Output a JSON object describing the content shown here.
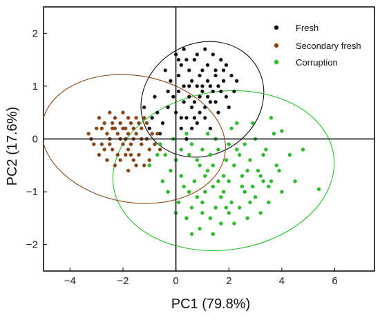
{
  "chart_data": {
    "type": "scatter",
    "xlabel": "PC1 (79.8%)",
    "ylabel": "PC2 (17.6%)",
    "xlim": [
      -5,
      7.5
    ],
    "ylim": [
      -2.5,
      2.5
    ],
    "xticks": [
      -4,
      -2,
      0,
      2,
      4,
      6
    ],
    "yticks": [
      -2,
      -1,
      0,
      1,
      2
    ],
    "xtick_labels": [
      "−4",
      "−2",
      "0",
      "2",
      "4",
      "6"
    ],
    "ytick_labels": [
      "−2",
      "−1",
      "0",
      "1",
      "2"
    ],
    "legend_position": "top-right",
    "grid": false,
    "series": [
      {
        "name": "Fresh",
        "color": "#111111",
        "ellipse": {
          "cx": 1.0,
          "cy": 0.75,
          "rx": 2.4,
          "ry": 1.05,
          "angle_deg": 32
        },
        "points": [
          [
            0.9,
            1.2
          ],
          [
            1.3,
            1.0
          ],
          [
            0.5,
            0.8
          ],
          [
            1.8,
            1.1
          ],
          [
            0.2,
            1.4
          ],
          [
            1.1,
            0.6
          ],
          [
            0.7,
            1.5
          ],
          [
            1.5,
            1.3
          ],
          [
            0.4,
            0.4
          ],
          [
            1.9,
            0.8
          ],
          [
            0.1,
            0.9
          ],
          [
            1.2,
            1.4
          ],
          [
            0.8,
            0.3
          ],
          [
            1.6,
            0.5
          ],
          [
            -0.3,
            0.6
          ],
          [
            0.6,
            1.1
          ],
          [
            1.4,
            0.9
          ],
          [
            2.1,
            1.2
          ],
          [
            0.3,
            1.7
          ],
          [
            1.0,
            0.9
          ],
          [
            -0.5,
            0.3
          ],
          [
            0.9,
            0.5
          ],
          [
            1.7,
            1.5
          ],
          [
            0.0,
            0.5
          ],
          [
            1.3,
            0.2
          ],
          [
            2.2,
            0.9
          ],
          [
            0.5,
            1.3
          ],
          [
            -0.2,
            1.1
          ],
          [
            1.1,
            1.7
          ],
          [
            0.4,
            0.0
          ],
          [
            -0.7,
            0.5
          ],
          [
            0.8,
            1.0
          ],
          [
            1.5,
            0.7
          ],
          [
            -1.0,
            0.2
          ],
          [
            0.2,
            0.2
          ],
          [
            1.9,
            1.4
          ],
          [
            0.7,
            0.7
          ],
          [
            -0.4,
            1.3
          ],
          [
            1.2,
            1.1
          ],
          [
            0.0,
            1.6
          ],
          [
            1.6,
            1.0
          ],
          [
            0.3,
            0.7
          ],
          [
            -0.8,
            0.8
          ],
          [
            1.0,
            1.3
          ],
          [
            2.0,
            0.6
          ],
          [
            0.6,
            0.2
          ],
          [
            1.4,
            1.6
          ],
          [
            -0.1,
            0.8
          ],
          [
            0.9,
            0.8
          ],
          [
            1.8,
            1.3
          ],
          [
            0.5,
            1.0
          ],
          [
            -0.6,
            0.1
          ],
          [
            1.3,
            0.7
          ],
          [
            0.1,
            1.2
          ],
          [
            2.3,
            1.1
          ],
          [
            0.7,
            0.4
          ],
          [
            1.1,
            0.4
          ],
          [
            -0.3,
            0.9
          ],
          [
            1.5,
            1.2
          ],
          [
            0.4,
            1.5
          ],
          [
            0.1,
            1.5
          ],
          [
            0.8,
            1.6
          ],
          [
            -1.2,
            0.6
          ],
          [
            1.7,
            0.9
          ],
          [
            0.6,
            0.6
          ],
          [
            1.0,
            1.0
          ],
          [
            -0.9,
            0.4
          ],
          [
            0.3,
            1.0
          ],
          [
            1.2,
            0.8
          ],
          [
            0.2,
            0.4
          ]
        ]
      },
      {
        "name": "Secondary fresh",
        "color": "#8b4513",
        "ellipse": {
          "cx": -1.6,
          "cy": 0.0,
          "rx": 3.5,
          "ry": 1.2,
          "angle_deg": -10
        },
        "points": [
          [
            -3.2,
            0.0
          ],
          [
            -2.8,
            0.2
          ],
          [
            -2.5,
            -0.1
          ],
          [
            -2.1,
            0.3
          ],
          [
            -1.8,
            -0.2
          ],
          [
            -1.5,
            0.1
          ],
          [
            -2.9,
            -0.3
          ],
          [
            -2.3,
            0.4
          ],
          [
            -1.9,
            0.0
          ],
          [
            -1.6,
            -0.4
          ],
          [
            -2.6,
            0.1
          ],
          [
            -1.3,
            0.2
          ],
          [
            -2.0,
            -0.1
          ],
          [
            -3.0,
            0.2
          ],
          [
            -1.7,
            0.3
          ],
          [
            -2.4,
            -0.2
          ],
          [
            -1.1,
            0.0
          ],
          [
            -2.2,
            0.1
          ],
          [
            -1.4,
            -0.3
          ],
          [
            -2.7,
            0.3
          ],
          [
            -1.9,
            0.2
          ],
          [
            -2.5,
            0.5
          ],
          [
            -1.2,
            -0.5
          ],
          [
            -2.1,
            -0.4
          ],
          [
            -0.9,
            0.1
          ],
          [
            -1.8,
            0.4
          ],
          [
            -2.8,
            -0.1
          ],
          [
            -1.6,
            0.0
          ],
          [
            -2.3,
            -0.5
          ],
          [
            -1.0,
            -0.2
          ],
          [
            -2.0,
            0.5
          ],
          [
            -2.6,
            -0.4
          ],
          [
            -1.4,
            0.3
          ],
          [
            -3.3,
            0.1
          ],
          [
            -1.7,
            -0.1
          ],
          [
            -2.4,
            0.2
          ],
          [
            -1.2,
            0.4
          ],
          [
            -2.2,
            -0.3
          ],
          [
            -0.8,
            -0.1
          ],
          [
            -1.5,
            -0.5
          ],
          [
            -1.3,
            -0.1
          ],
          [
            -2.9,
            0.4
          ],
          [
            -1.8,
            -0.6
          ],
          [
            -2.5,
            0.0
          ],
          [
            -1.1,
            0.3
          ],
          [
            -2.0,
            0.2
          ],
          [
            -0.7,
            0.1
          ],
          [
            -1.6,
            0.2
          ],
          [
            -2.7,
            -0.2
          ],
          [
            -1.9,
            -0.3
          ],
          [
            -2.1,
            0.0
          ],
          [
            -1.5,
            0.4
          ],
          [
            -2.3,
            0.2
          ],
          [
            -1.0,
            -0.4
          ],
          [
            -1.7,
            -0.3
          ],
          [
            -3.1,
            -0.1
          ],
          [
            -0.6,
            -0.2
          ],
          [
            -1.3,
            0.0
          ],
          [
            -2.4,
            0.3
          ],
          [
            -1.8,
            0.1
          ]
        ]
      },
      {
        "name": "Corruption",
        "color": "#22c322",
        "ellipse": {
          "cx": 1.8,
          "cy": -0.6,
          "rx": 4.2,
          "ry": 1.5,
          "angle_deg": 8
        },
        "points": [
          [
            0.5,
            -0.3
          ],
          [
            1.2,
            -0.6
          ],
          [
            2.0,
            -0.8
          ],
          [
            2.8,
            -0.4
          ],
          [
            3.5,
            -0.9
          ],
          [
            0.8,
            -1.1
          ],
          [
            1.6,
            -0.2
          ],
          [
            2.4,
            -1.3
          ],
          [
            3.1,
            -0.6
          ],
          [
            0.2,
            -0.7
          ],
          [
            1.0,
            -1.4
          ],
          [
            1.8,
            -1.0
          ],
          [
            2.6,
            -0.1
          ],
          [
            3.8,
            -0.5
          ],
          [
            0.6,
            -0.1
          ],
          [
            1.4,
            -0.9
          ],
          [
            2.2,
            -0.5
          ],
          [
            3.0,
            -1.1
          ],
          [
            4.0,
            -1.0
          ],
          [
            0.1,
            -1.2
          ],
          [
            0.9,
            -0.5
          ],
          [
            1.7,
            -1.6
          ],
          [
            2.5,
            -0.7
          ],
          [
            3.3,
            -0.3
          ],
          [
            0.4,
            -1.5
          ],
          [
            1.3,
            -0.3
          ],
          [
            2.1,
            -1.2
          ],
          [
            2.9,
            -0.9
          ],
          [
            3.7,
            0.1
          ],
          [
            0.7,
            -0.8
          ],
          [
            1.5,
            -1.3
          ],
          [
            2.3,
            -0.2
          ],
          [
            3.2,
            -1.4
          ],
          [
            4.3,
            -0.3
          ],
          [
            0.0,
            -0.4
          ],
          [
            1.1,
            -1.0
          ],
          [
            1.9,
            -0.4
          ],
          [
            2.7,
            -1.5
          ],
          [
            3.6,
            -0.8
          ],
          [
            0.3,
            -0.9
          ],
          [
            1.0,
            -0.2
          ],
          [
            1.8,
            -0.7
          ],
          [
            2.6,
            -1.0
          ],
          [
            3.4,
            -0.2
          ],
          [
            4.5,
            -0.8
          ],
          [
            -0.2,
            -0.6
          ],
          [
            0.6,
            -1.3
          ],
          [
            1.4,
            -0.5
          ],
          [
            2.2,
            -1.6
          ],
          [
            3.0,
            0.0
          ],
          [
            0.9,
            -1.7
          ],
          [
            1.6,
            -0.8
          ],
          [
            2.4,
            -0.3
          ],
          [
            3.2,
            -0.7
          ],
          [
            -0.4,
            -0.3
          ],
          [
            0.5,
            -1.0
          ],
          [
            1.3,
            -1.5
          ],
          [
            2.0,
            -0.1
          ],
          [
            2.8,
            -1.2
          ],
          [
            3.9,
            -0.6
          ],
          [
            0.2,
            -0.2
          ],
          [
            1.1,
            -0.7
          ],
          [
            1.9,
            -1.3
          ],
          [
            2.7,
            -0.6
          ],
          [
            3.5,
            -1.2
          ],
          [
            -0.5,
            -0.8
          ],
          [
            0.8,
            -0.4
          ],
          [
            1.7,
            -1.1
          ],
          [
            2.5,
            -0.9
          ],
          [
            3.3,
            -0.8
          ],
          [
            1.2,
            0.1
          ],
          [
            2.1,
            0.2
          ],
          [
            2.9,
            0.3
          ],
          [
            0.4,
            0.1
          ],
          [
            1.5,
            0.0
          ],
          [
            3.6,
            0.4
          ],
          [
            -0.1,
            0.0
          ],
          [
            -0.7,
            -0.3
          ],
          [
            -1.0,
            -0.5
          ],
          [
            -0.3,
            -1.0
          ],
          [
            0.6,
            -1.8
          ],
          [
            1.4,
            -1.8
          ],
          [
            4.8,
            -0.2
          ],
          [
            5.4,
            -0.95
          ],
          [
            4.0,
            0.15
          ],
          [
            2.3,
            0.3
          ],
          [
            0.0,
            -1.4
          ],
          [
            -0.6,
            -0.1
          ],
          [
            1.0,
            -1.2
          ],
          [
            2.0,
            -1.4
          ]
        ]
      }
    ]
  }
}
